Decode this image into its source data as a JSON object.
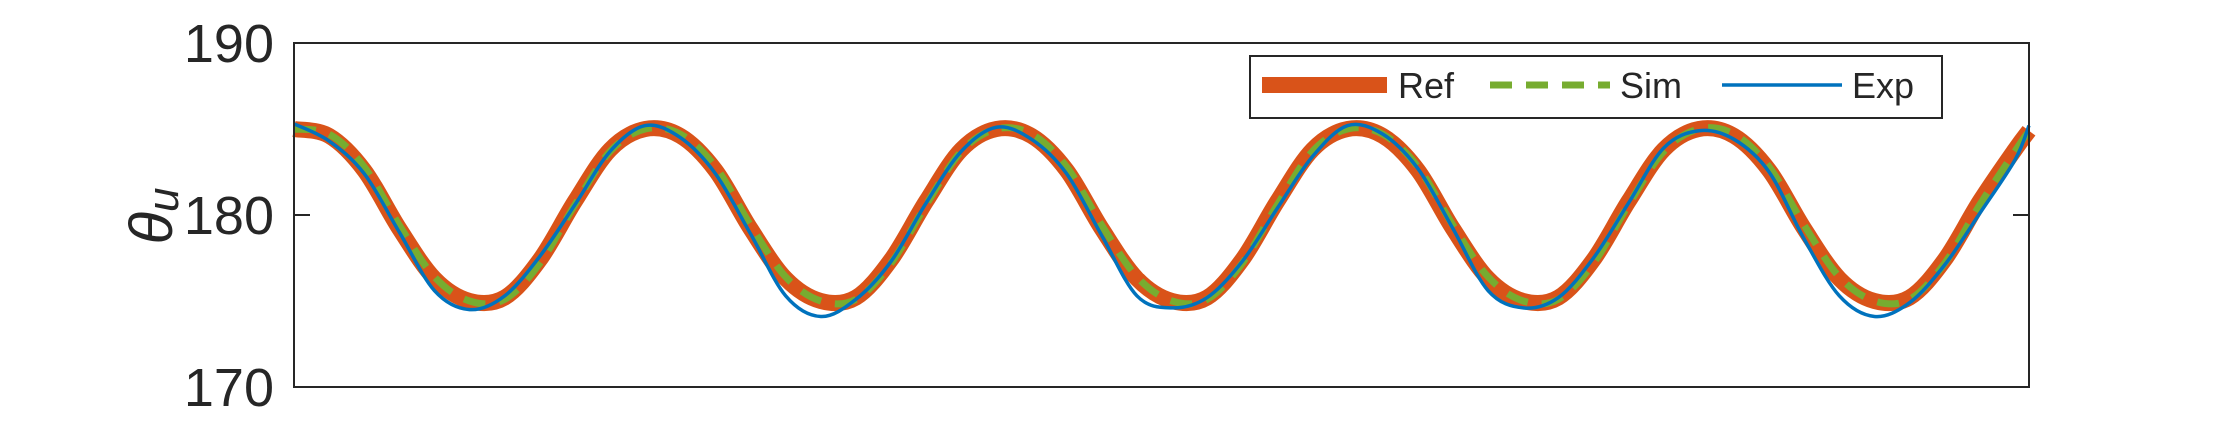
{
  "chart_data": {
    "type": "line",
    "ylabel": "θu",
    "ylabel_main": "θ",
    "ylabel_sub": "u",
    "ylim": [
      170,
      190
    ],
    "yticks": [
      170,
      180,
      190
    ],
    "ytick_labels": [
      "170",
      "180",
      "190"
    ],
    "xlim": [
      0,
      24.7
    ],
    "xticks": [],
    "grid": false,
    "legend_position": "top-right",
    "colors": {
      "Ref": "#D95319",
      "Sim": "#77AC30",
      "Exp": "#0072BD"
    },
    "series": [
      {
        "name": "Ref",
        "style": "solid-thick",
        "x": [
          0,
          0.5,
          1,
          1.5,
          2,
          2.5,
          3,
          3.5,
          4,
          4.5,
          5,
          5.5,
          6,
          6.5,
          7,
          7.5,
          8,
          8.5,
          9,
          9.5,
          10,
          10.5,
          11,
          11.5,
          12,
          12.5,
          13,
          13.5,
          14,
          14.5,
          15,
          15.5,
          16,
          16.5,
          17,
          17.5,
          18,
          18.5,
          19,
          19.5,
          20,
          20.5,
          21,
          21.5,
          22,
          22.5,
          23,
          23.5,
          24,
          24.5,
          24.7
        ],
        "values": [
          185,
          184.6,
          182.6,
          179.2,
          176.3,
          175,
          175.2,
          177.4,
          180.8,
          183.8,
          185,
          184.6,
          182.6,
          179.2,
          176.3,
          175,
          175.2,
          177.4,
          180.8,
          183.8,
          185,
          184.6,
          182.6,
          179.2,
          176.3,
          175,
          175.2,
          177.4,
          180.8,
          183.8,
          185,
          184.6,
          182.6,
          179.2,
          176.3,
          175,
          175.2,
          177.4,
          180.8,
          183.8,
          185,
          184.6,
          182.6,
          179.2,
          176.3,
          175,
          175.2,
          177.4,
          180.8,
          183.8,
          184.9
        ]
      },
      {
        "name": "Sim",
        "style": "dashed",
        "x": [
          0,
          0.5,
          1,
          1.5,
          2,
          2.5,
          3,
          3.5,
          4,
          4.5,
          5,
          5.5,
          6,
          6.5,
          7,
          7.5,
          8,
          8.5,
          9,
          9.5,
          10,
          10.5,
          11,
          11.5,
          12,
          12.5,
          13,
          13.5,
          14,
          14.5,
          15,
          15.5,
          16,
          16.5,
          17,
          17.5,
          18,
          18.5,
          19,
          19.5,
          20,
          20.5,
          21,
          21.5,
          22,
          22.5,
          23,
          23.5,
          24,
          24.5,
          24.7
        ],
        "values": [
          185,
          184.7,
          182.8,
          179.4,
          176.4,
          175,
          175.1,
          177.2,
          180.6,
          183.7,
          185,
          184.7,
          182.8,
          179.4,
          176.4,
          175,
          175.1,
          177.2,
          180.6,
          183.7,
          185,
          184.7,
          182.8,
          179.4,
          176.4,
          175,
          175.1,
          177.2,
          180.6,
          183.7,
          185,
          184.7,
          182.8,
          179.4,
          176.4,
          175,
          175.1,
          177.2,
          180.6,
          183.7,
          185,
          184.7,
          182.8,
          179.4,
          176.4,
          175,
          175.1,
          177.2,
          180.6,
          183.7,
          184.9
        ]
      },
      {
        "name": "Exp",
        "style": "solid-thin",
        "x": [
          0,
          0.5,
          1,
          1.5,
          2,
          2.5,
          3,
          3.5,
          4,
          4.5,
          5,
          5.5,
          6,
          6.5,
          7,
          7.5,
          8,
          8.5,
          9,
          9.5,
          10,
          10.5,
          11,
          11.5,
          12,
          12.5,
          13,
          13.5,
          14,
          14.5,
          15,
          15.5,
          16,
          16.5,
          17,
          17.5,
          18,
          18.5,
          19,
          19.5,
          20,
          20.5,
          21,
          21.5,
          22,
          22.5,
          23,
          23.5,
          24,
          24.5,
          24.7
        ],
        "values": [
          185.3,
          184.3,
          182.4,
          179,
          175.6,
          174.5,
          175.3,
          177.6,
          180.6,
          183.7,
          185.2,
          184.5,
          182.4,
          178.9,
          175.3,
          174.1,
          175.1,
          177.3,
          180.7,
          183.7,
          185.1,
          184.4,
          182.4,
          178.8,
          175.3,
          174.6,
          175.2,
          177.3,
          180.4,
          183.4,
          185.2,
          184.7,
          182.7,
          179.2,
          175.6,
          174.6,
          175.2,
          177.5,
          180.7,
          183.9,
          184.9,
          184.4,
          182.5,
          178.6,
          175.3,
          174.1,
          174.9,
          177.1,
          180.1,
          183.2,
          185.2
        ]
      }
    ]
  }
}
